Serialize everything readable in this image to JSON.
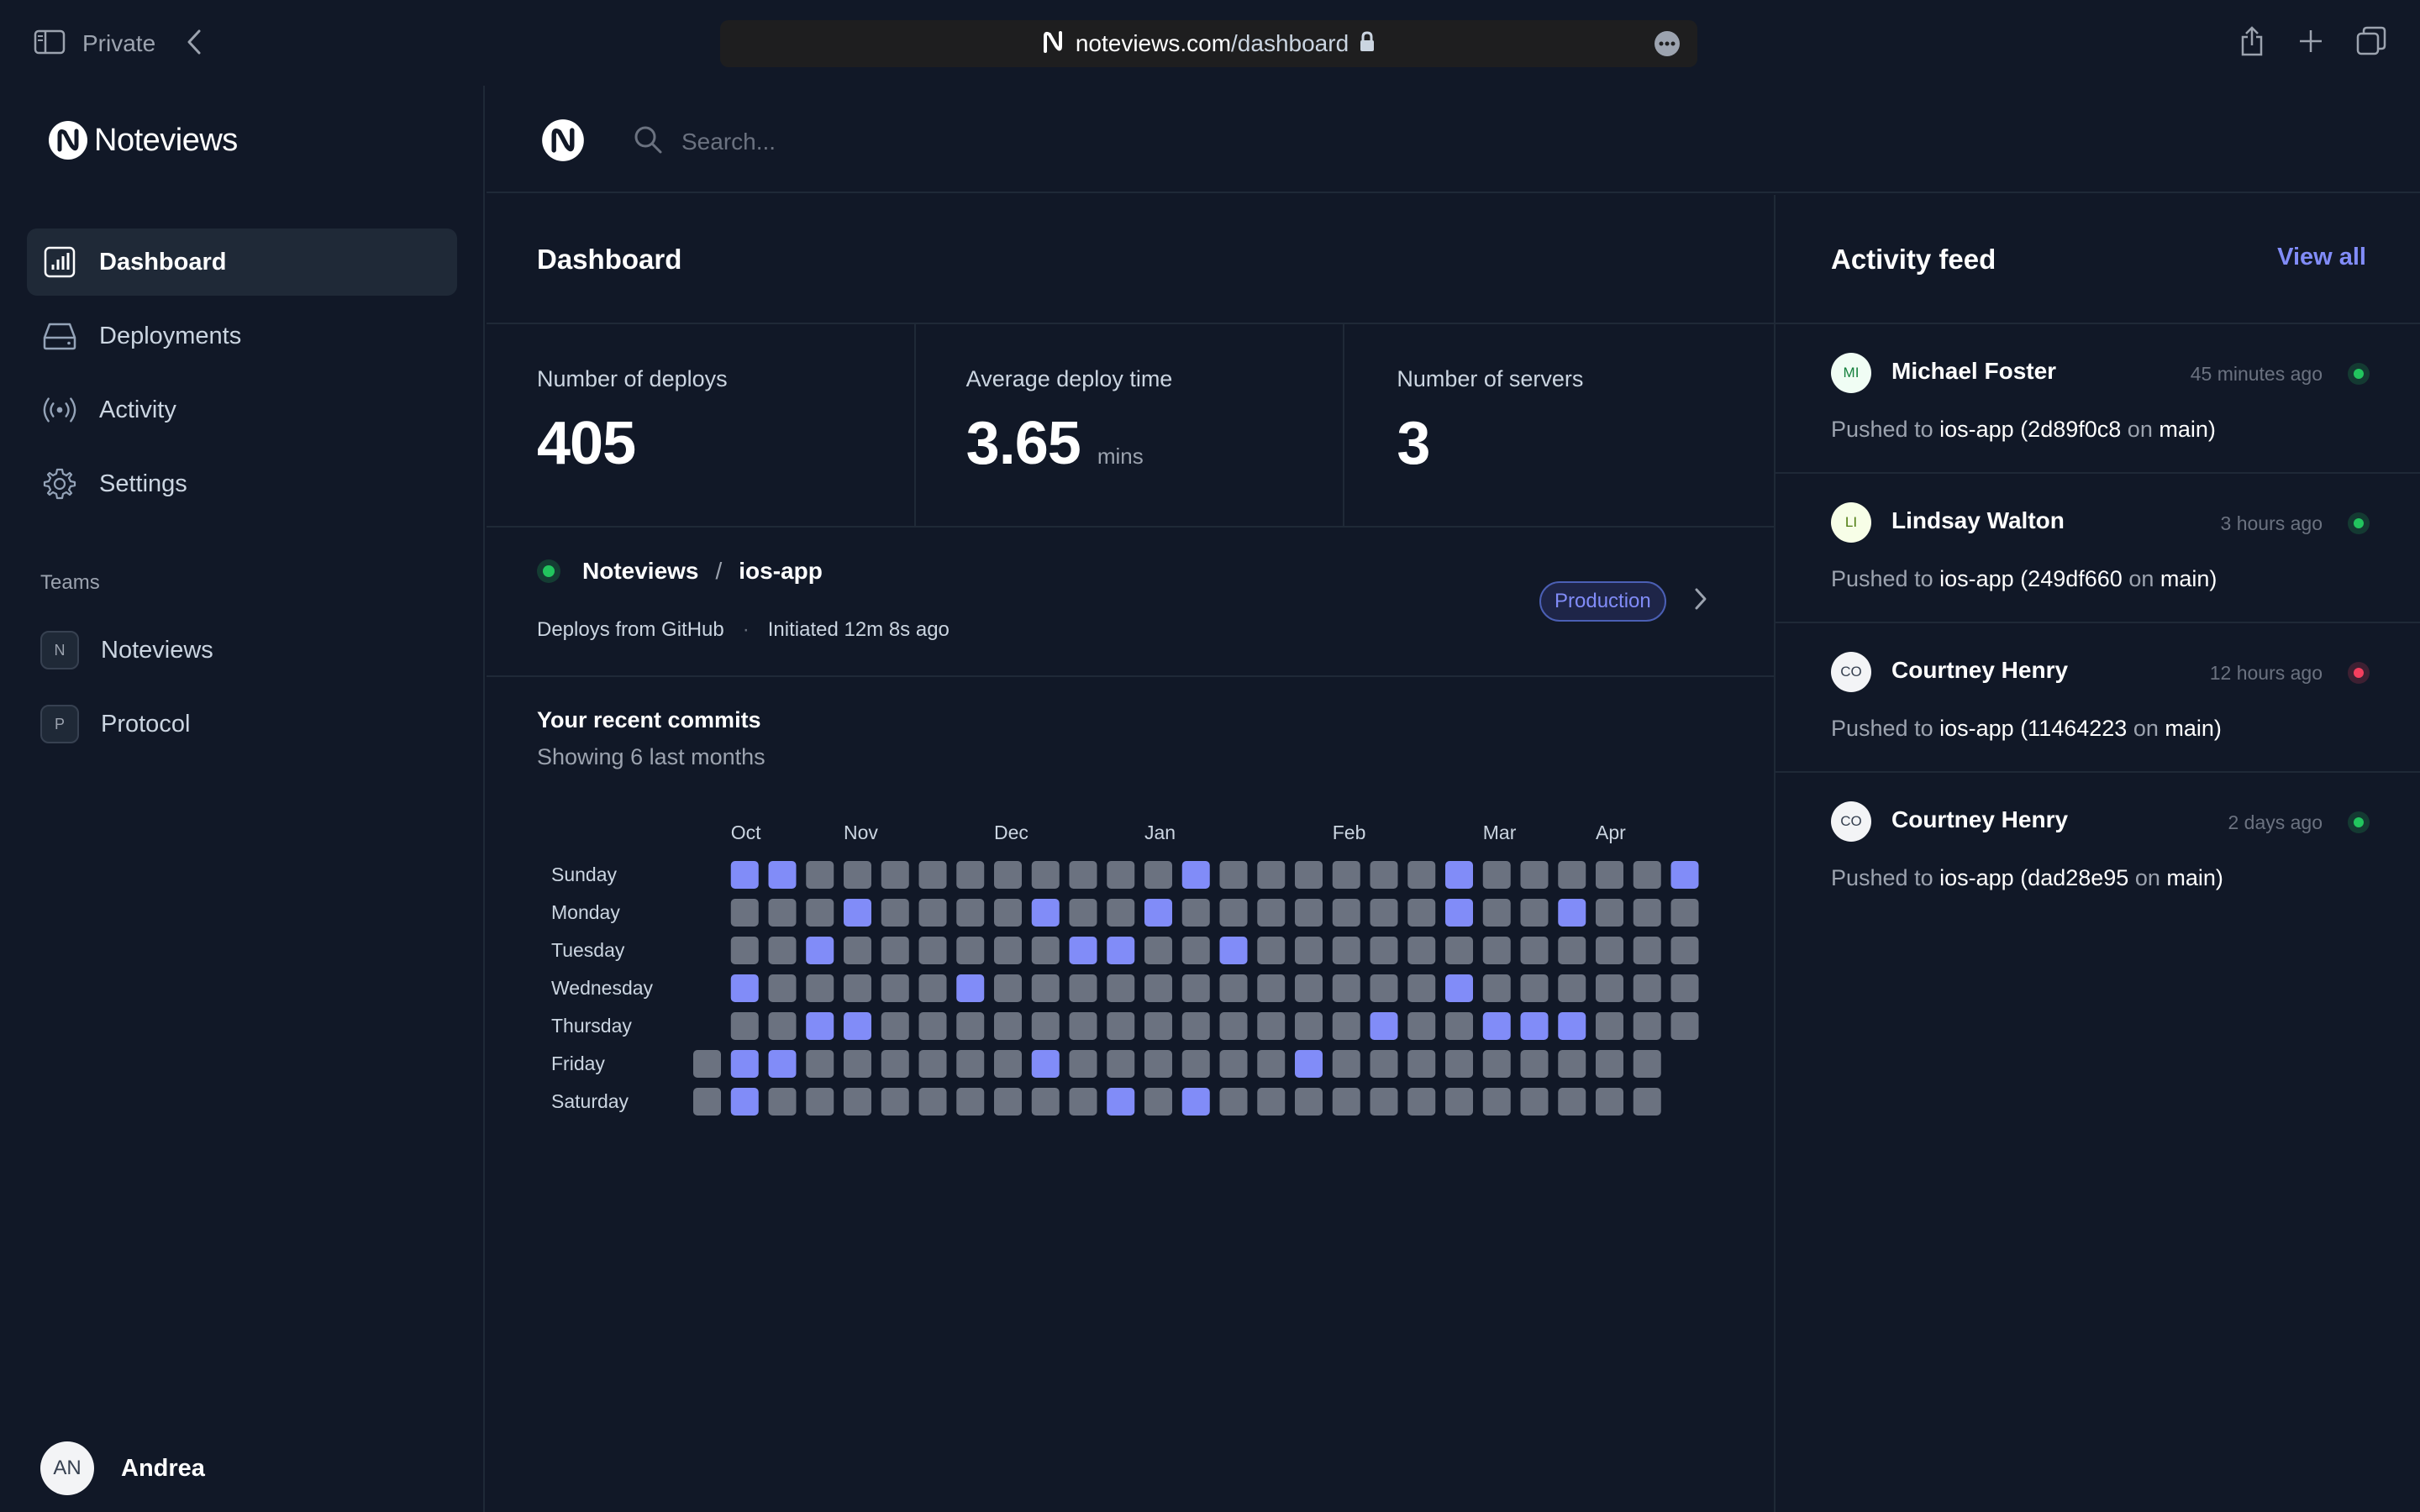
{
  "browser": {
    "private_label": "Private",
    "url_domain": "noteviews.com",
    "url_path": "/dashboard"
  },
  "sidebar": {
    "logo_text": "Noteviews",
    "nav": [
      {
        "label": "Dashboard",
        "icon": "bar-chart-icon",
        "active": true
      },
      {
        "label": "Deployments",
        "icon": "server-icon",
        "active": false
      },
      {
        "label": "Activity",
        "icon": "signal-icon",
        "active": false
      },
      {
        "label": "Settings",
        "icon": "gear-icon",
        "active": false
      }
    ],
    "teams_label": "Teams",
    "teams": [
      {
        "initial": "N",
        "label": "Noteviews"
      },
      {
        "initial": "P",
        "label": "Protocol"
      }
    ],
    "user": {
      "initials": "AN",
      "name": "Andrea"
    }
  },
  "topbar": {
    "search_placeholder": "Search..."
  },
  "dashboard": {
    "title": "Dashboard",
    "stats": [
      {
        "label": "Number of deploys",
        "value": "405",
        "unit": ""
      },
      {
        "label": "Average deploy time",
        "value": "3.65",
        "unit": "mins"
      },
      {
        "label": "Number of servers",
        "value": "3",
        "unit": ""
      }
    ],
    "deploy": {
      "org": "Noteviews",
      "separator": "/",
      "project": "ios-app",
      "source": "Deploys from GitHub",
      "dot": "·",
      "initiated": "Initiated 12m 8s ago",
      "environment": "Production",
      "status_color": "#22c55e"
    },
    "commits": {
      "title": "Your recent commits",
      "subtitle": "Showing 6 last months",
      "months": [
        "Oct",
        "Nov",
        "Dec",
        "Jan",
        "Feb",
        "Mar",
        "Apr"
      ],
      "month_week_index": [
        1,
        4,
        8,
        12,
        17,
        21,
        24
      ],
      "days": [
        "Sunday",
        "Monday",
        "Tuesday",
        "Wednesday",
        "Thursday",
        "Friday",
        "Saturday"
      ],
      "active_color": "#818cf8",
      "inactive_color": "#6b7280",
      "grid": [
        [
          null,
          1,
          1,
          0,
          0,
          0,
          0,
          0,
          0,
          0,
          0,
          0,
          0,
          1,
          0,
          0,
          0,
          0,
          0,
          0,
          1,
          0,
          0,
          0,
          0,
          0,
          1
        ],
        [
          null,
          0,
          0,
          0,
          1,
          0,
          0,
          0,
          0,
          1,
          0,
          0,
          1,
          0,
          0,
          0,
          0,
          0,
          0,
          0,
          1,
          0,
          0,
          1,
          0,
          0,
          0
        ],
        [
          null,
          0,
          0,
          1,
          0,
          0,
          0,
          0,
          0,
          0,
          1,
          1,
          0,
          0,
          1,
          0,
          0,
          0,
          0,
          0,
          0,
          0,
          0,
          0,
          0,
          0,
          0
        ],
        [
          null,
          1,
          0,
          0,
          0,
          0,
          0,
          1,
          0,
          0,
          0,
          0,
          0,
          0,
          0,
          0,
          0,
          0,
          0,
          0,
          1,
          0,
          0,
          0,
          0,
          0,
          0
        ],
        [
          null,
          0,
          0,
          1,
          1,
          0,
          0,
          0,
          0,
          0,
          0,
          0,
          0,
          0,
          0,
          0,
          0,
          0,
          1,
          0,
          0,
          1,
          1,
          1,
          0,
          0,
          0
        ],
        [
          0,
          1,
          1,
          0,
          0,
          0,
          0,
          0,
          0,
          1,
          0,
          0,
          0,
          0,
          0,
          0,
          1,
          0,
          0,
          0,
          0,
          0,
          0,
          0,
          0,
          0,
          null
        ],
        [
          0,
          1,
          0,
          0,
          0,
          0,
          0,
          0,
          0,
          0,
          0,
          1,
          0,
          1,
          0,
          0,
          0,
          0,
          0,
          0,
          0,
          0,
          0,
          0,
          0,
          0,
          null
        ]
      ]
    }
  },
  "activity": {
    "title": "Activity feed",
    "view_all": "View all",
    "items": [
      {
        "initials": "MI",
        "name": "Michael Foster",
        "time": "45 minutes ago",
        "prefix": "Pushed to",
        "repo": "ios-app",
        "commit": "(2d89f0c8",
        "on": "on",
        "branch": "main)",
        "status_color": "#22c55e",
        "avatar_bg": "#f0fdf4",
        "avatar_fg": "#15803d"
      },
      {
        "initials": "LI",
        "name": "Lindsay Walton",
        "time": "3 hours ago",
        "prefix": "Pushed to",
        "repo": "ios-app",
        "commit": "(249df660",
        "on": "on",
        "branch": "main)",
        "status_color": "#22c55e",
        "avatar_bg": "#f7fee7",
        "avatar_fg": "#4d7c0f"
      },
      {
        "initials": "CO",
        "name": "Courtney Henry",
        "time": "12 hours ago",
        "prefix": "Pushed to",
        "repo": "ios-app",
        "commit": "(11464223",
        "on": "on",
        "branch": "main)",
        "status_color": "#f43f5e",
        "avatar_bg": "#f3f4f6",
        "avatar_fg": "#374151"
      },
      {
        "initials": "CO",
        "name": "Courtney Henry",
        "time": "2 days ago",
        "prefix": "Pushed to",
        "repo": "ios-app",
        "commit": "(dad28e95",
        "on": "on",
        "branch": "main)",
        "status_color": "#22c55e",
        "avatar_bg": "#f3f4f6",
        "avatar_fg": "#374151"
      }
    ]
  }
}
